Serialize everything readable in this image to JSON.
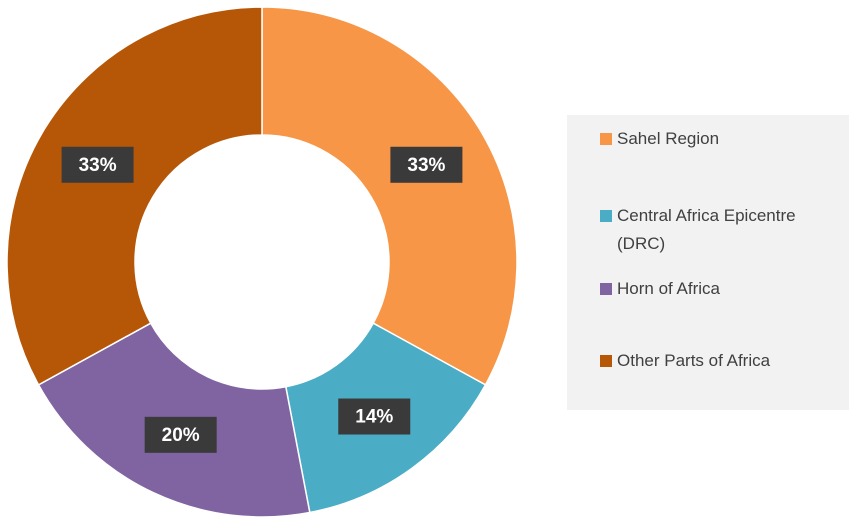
{
  "chart_data": {
    "type": "donut",
    "categories": [
      "Sahel Region",
      "Central Africa Epicentre (DRC)",
      "Horn of Africa",
      "Other Parts of Africa"
    ],
    "values": [
      33,
      14,
      20,
      33
    ],
    "value_labels": [
      "33%",
      "14%",
      "20%",
      "33%"
    ],
    "colors": [
      "#F79646",
      "#4BACC6",
      "#8064A2",
      "#B65708"
    ],
    "legend": "right"
  }
}
